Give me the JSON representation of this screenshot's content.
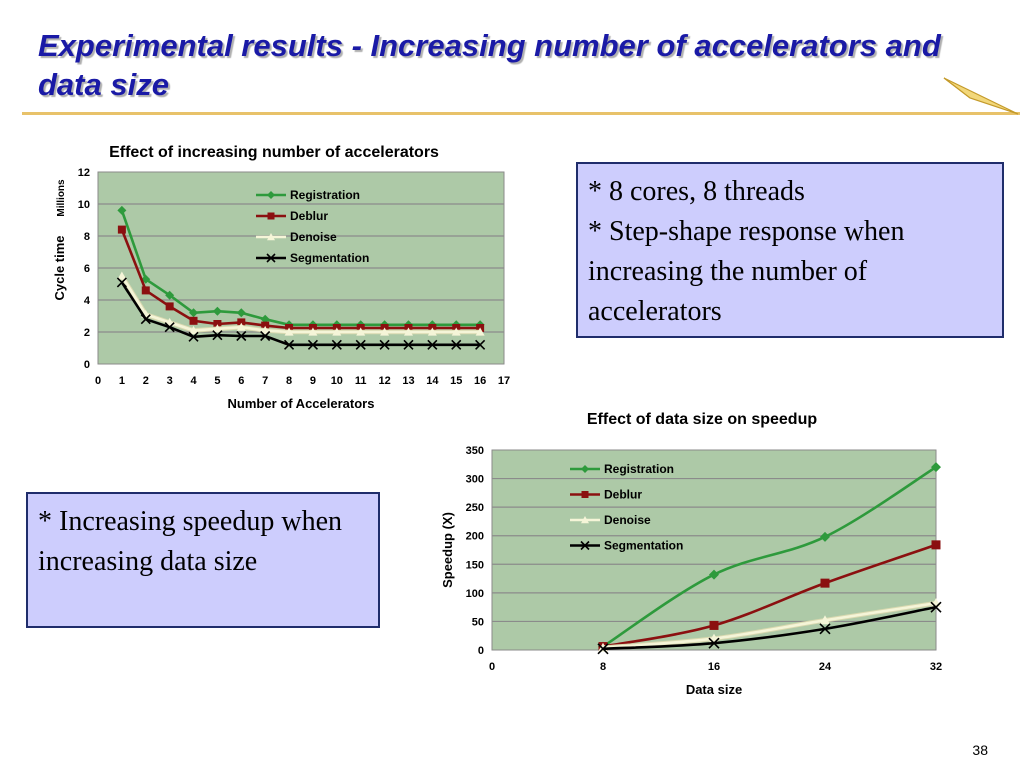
{
  "slide": {
    "title": "Experimental results - Increasing number of accelerators and data size",
    "page_number": "38",
    "accent_color": "#1a1aa6",
    "rule_color": "#e8c26a"
  },
  "notes": {
    "top_right": [
      "* 8 cores, 8 threads",
      "* Step-shape response when increasing the number of accelerators"
    ],
    "bottom_left": [
      "* Increasing speedup when increasing data size"
    ]
  },
  "chart_data": [
    {
      "type": "line",
      "title": "Effect of increasing number of accelerators",
      "xlabel": "Number of Accelerators",
      "ylabel": "Cycle time",
      "y_unit_label": "Millions",
      "xlim": [
        0,
        17
      ],
      "ylim": [
        0,
        12
      ],
      "x_ticks": [
        0,
        1,
        2,
        3,
        4,
        5,
        6,
        7,
        8,
        9,
        10,
        11,
        12,
        13,
        14,
        15,
        16,
        17
      ],
      "y_ticks": [
        0,
        2,
        4,
        6,
        8,
        10,
        12
      ],
      "x": [
        1,
        2,
        3,
        4,
        5,
        6,
        7,
        8,
        9,
        10,
        11,
        12,
        13,
        14,
        15,
        16
      ],
      "grid": true,
      "legend_position": "top-center",
      "plot_background": "#adc9a7",
      "series": [
        {
          "name": "Registration",
          "color": "#2e9a3c",
          "marker": "diamond",
          "values": [
            9.6,
            5.3,
            4.3,
            3.2,
            3.3,
            3.2,
            2.8,
            2.45,
            2.45,
            2.45,
            2.45,
            2.45,
            2.45,
            2.45,
            2.45,
            2.45
          ]
        },
        {
          "name": "Deblur",
          "color": "#8b1010",
          "marker": "square",
          "values": [
            8.4,
            4.6,
            3.6,
            2.7,
            2.5,
            2.6,
            2.4,
            2.25,
            2.25,
            2.25,
            2.25,
            2.25,
            2.25,
            2.25,
            2.25,
            2.25
          ]
        },
        {
          "name": "Denoise",
          "color": "#f5f5d8",
          "marker": "triangle",
          "values": [
            5.5,
            3.1,
            2.6,
            2.1,
            2.2,
            2.3,
            2.1,
            2.0,
            2.0,
            2.0,
            2.0,
            2.0,
            2.0,
            2.0,
            2.0,
            2.0
          ]
        },
        {
          "name": "Segmentation",
          "color": "#000000",
          "marker": "x",
          "values": [
            5.1,
            2.8,
            2.3,
            1.7,
            1.8,
            1.75,
            1.75,
            1.2,
            1.2,
            1.2,
            1.2,
            1.2,
            1.2,
            1.2,
            1.2,
            1.2
          ]
        }
      ]
    },
    {
      "type": "line",
      "title": "Effect of data size on speedup",
      "xlabel": "Data size",
      "ylabel": "Speedup (X)",
      "xlim": [
        0,
        32
      ],
      "ylim": [
        0,
        350
      ],
      "x_tick_labels": [
        "0",
        "8",
        "16",
        "24",
        "32"
      ],
      "y_ticks": [
        0,
        50,
        100,
        150,
        200,
        250,
        300,
        350
      ],
      "x": [
        8,
        16,
        24,
        32
      ],
      "grid": true,
      "legend_position": "top-left",
      "plot_background": "#adc9a7",
      "series": [
        {
          "name": "Registration",
          "color": "#2e9a3c",
          "marker": "diamond",
          "values": [
            6,
            132,
            198,
            320
          ]
        },
        {
          "name": "Deblur",
          "color": "#8b1010",
          "marker": "square",
          "values": [
            6,
            43,
            117,
            184
          ]
        },
        {
          "name": "Denoise",
          "color": "#f5f5d8",
          "marker": "triangle",
          "values": [
            4,
            20,
            52,
            82
          ]
        },
        {
          "name": "Segmentation",
          "color": "#000000",
          "marker": "x",
          "values": [
            2,
            12,
            37,
            75
          ]
        }
      ]
    }
  ]
}
